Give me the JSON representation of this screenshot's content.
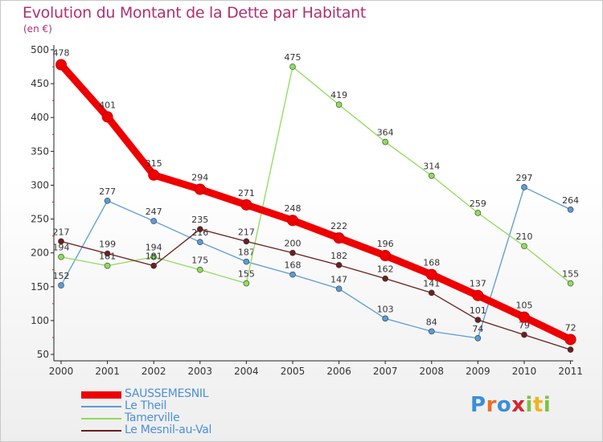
{
  "title": "Evolution du Montant de la Dette par Habitant",
  "subtitle": "(en €)",
  "logo": "Proxiti",
  "chart_data": {
    "type": "line",
    "title": "Evolution du Montant de la Dette par Habitant",
    "subtitle": "(en €)",
    "xlabel": "",
    "ylabel": "",
    "x": [
      "2000",
      "2001",
      "2002",
      "2003",
      "2004",
      "2005",
      "2006",
      "2007",
      "2008",
      "2009",
      "2010",
      "2011"
    ],
    "ylim": [
      50,
      500
    ],
    "yticks": [
      50,
      100,
      150,
      200,
      250,
      300,
      350,
      400,
      450,
      500
    ],
    "grid": false,
    "legend": "bottom-left",
    "series": [
      {
        "name": "SAUSSEMESNIL",
        "color": "#ee0000",
        "values": [
          478,
          401,
          315,
          294,
          271,
          248,
          222,
          196,
          168,
          137,
          105,
          72
        ]
      },
      {
        "name": "Le Theil",
        "color": "#5b9bd5",
        "values": [
          152,
          277,
          247,
          216,
          187,
          168,
          147,
          103,
          84,
          74,
          297,
          264
        ]
      },
      {
        "name": "Tamerville",
        "color": "#8fdc5a",
        "values": [
          194,
          181,
          194,
          175,
          155,
          475,
          419,
          364,
          314,
          259,
          210,
          155
        ]
      },
      {
        "name": "Le Mesnil-au-Val",
        "color": "#6b1f1f",
        "values": [
          217,
          199,
          181,
          235,
          217,
          200,
          182,
          162,
          141,
          101,
          79,
          57
        ]
      }
    ]
  }
}
